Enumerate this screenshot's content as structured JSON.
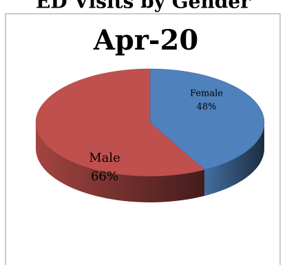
{
  "chart_data": {
    "type": "pie",
    "title": "ED Visits by Gender",
    "subtitle": "Apr-20",
    "categories": [
      "Female",
      "Male"
    ],
    "values": [
      48,
      66
    ],
    "value_labels": [
      "48%",
      "66%"
    ],
    "colors": [
      "#4f81bd",
      "#c0504d"
    ]
  }
}
